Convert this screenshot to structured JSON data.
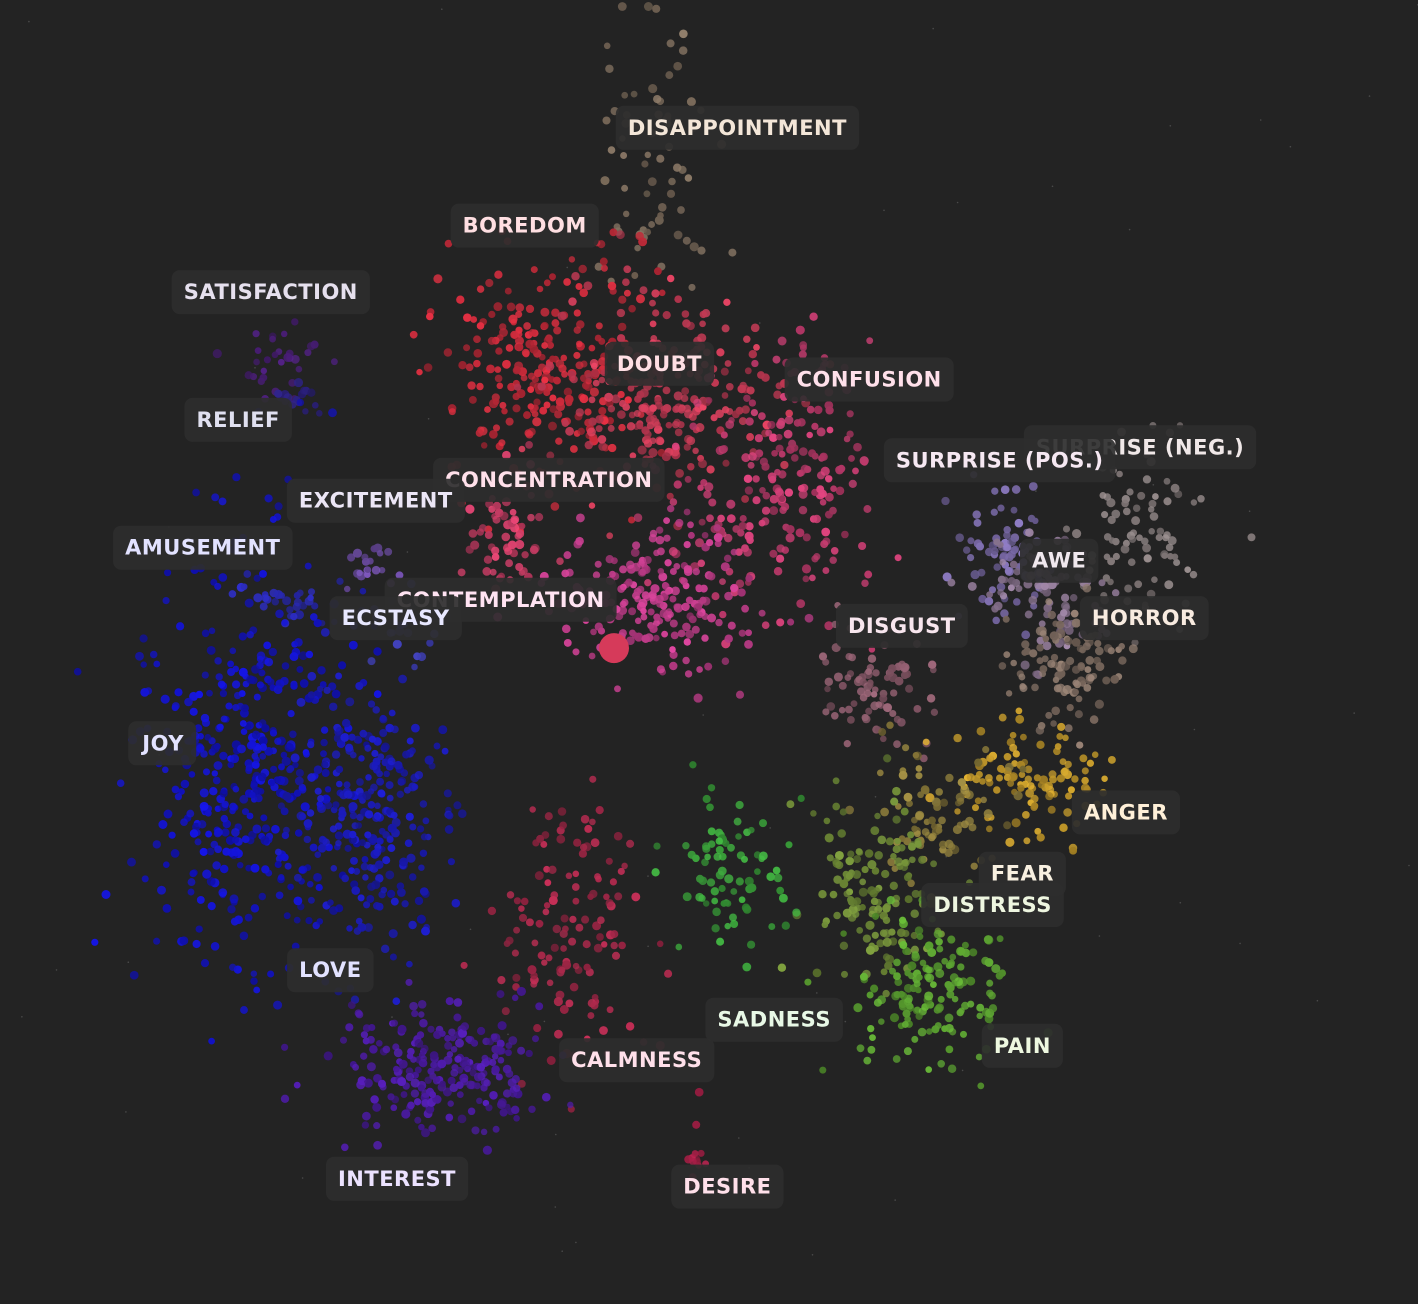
{
  "chart_data": {
    "type": "scatter",
    "title": "",
    "xlabel": "",
    "ylabel": "",
    "grid": false,
    "legend": "none",
    "xlim": [
      0,
      100
    ],
    "ylim": [
      0,
      100
    ],
    "clusters": [
      {
        "name": "DISAPPOINTMENT",
        "color": "#7a6a5a",
        "label_color": "#f3e6d8",
        "center": [
          46.5,
          13.0
        ],
        "spread": [
          2.2,
          6.0
        ],
        "count": 70
      },
      {
        "name": "BOREDOM",
        "color": "#c72a3a",
        "label_color": "#ffdfe2",
        "center": [
          39.0,
          28.0
        ],
        "spread": [
          3.5,
          4.5
        ],
        "count": 260
      },
      {
        "name": "SATISFACTION",
        "color": "#4b1e7a",
        "label_color": "#e6e0ee",
        "center": [
          19.5,
          28.0
        ],
        "spread": [
          1.4,
          1.4
        ],
        "count": 30
      },
      {
        "name": "DOUBT",
        "color": "#c63a55",
        "label_color": "#ffdfe4",
        "center": [
          47.0,
          30.5
        ],
        "spread": [
          4.0,
          4.0
        ],
        "count": 230
      },
      {
        "name": "CONFUSION",
        "color": "#c23b6e",
        "label_color": "#ffe0ea",
        "center": [
          55.0,
          37.0
        ],
        "spread": [
          3.6,
          5.5
        ],
        "count": 220
      },
      {
        "name": "RELIEF",
        "color": "#2a1f7a",
        "label_color": "#e0e0f0",
        "center": [
          21.0,
          30.5
        ],
        "spread": [
          0.9,
          0.5
        ],
        "count": 16
      },
      {
        "name": "SURPRISE (POS.)",
        "color": "#7a6aa8",
        "label_color": "#f6e8f2",
        "center": [
          71.0,
          42.5
        ],
        "spread": [
          2.0,
          2.3
        ],
        "count": 80
      },
      {
        "name": "SURPRISE (NEG.)",
        "color": "#8a8080",
        "label_color": "#f0e8e8",
        "center": [
          80.0,
          40.5
        ],
        "spread": [
          2.2,
          3.2
        ],
        "count": 90
      },
      {
        "name": "CONCENTRATION",
        "color": "#cc3d66",
        "label_color": "#ffe0ea",
        "center": [
          35.5,
          41.0
        ],
        "spread": [
          1.4,
          2.6
        ],
        "count": 60
      },
      {
        "name": "EXCITEMENT",
        "color": "#6a4aa0",
        "label_color": "#ece6f6",
        "center": [
          26.5,
          43.5
        ],
        "spread": [
          1.0,
          0.9
        ],
        "count": 20
      },
      {
        "name": "AMUSEMENT",
        "color": "#2828b0",
        "label_color": "#e2e2ff",
        "center": [
          20.0,
          46.0
        ],
        "spread": [
          1.8,
          1.0
        ],
        "count": 30
      },
      {
        "name": "AWE",
        "color": "#8a7490",
        "label_color": "#f0e8ee",
        "center": [
          74.0,
          45.5
        ],
        "spread": [
          2.2,
          2.6
        ],
        "count": 90
      },
      {
        "name": "CONTEMPLATION",
        "color": "#c13c8a",
        "label_color": "#ffe3f2",
        "center": [
          46.0,
          46.0
        ],
        "spread": [
          3.4,
          2.8
        ],
        "count": 210
      },
      {
        "name": "ECSTASY",
        "color": "#4040b8",
        "label_color": "#e8e8ff",
        "center": [
          28.5,
          48.0
        ],
        "spread": [
          1.4,
          1.6
        ],
        "count": 30
      },
      {
        "name": "HORROR",
        "color": "#857266",
        "label_color": "#f8ebe0",
        "center": [
          75.5,
          51.0
        ],
        "spread": [
          2.2,
          2.4
        ],
        "count": 100
      },
      {
        "name": "DISGUST",
        "color": "#8a5a6a",
        "label_color": "#f8e6ee",
        "center": [
          61.5,
          52.5
        ],
        "spread": [
          2.0,
          2.0
        ],
        "count": 80
      },
      {
        "name": "JOY",
        "color": "#1212c8",
        "label_color": "#e2e2ff",
        "center": [
          17.5,
          59.0
        ],
        "spread": [
          3.6,
          8.0
        ],
        "count": 420
      },
      {
        "name": "ANGER",
        "color": "#c49a2a",
        "label_color": "#fff0d8",
        "center": [
          72.5,
          60.0
        ],
        "spread": [
          2.6,
          2.4
        ],
        "count": 110
      },
      {
        "name": "FEAR",
        "color": "#8a7a3a",
        "label_color": "#f8f0e0",
        "center": [
          66.0,
          62.5
        ],
        "spread": [
          2.4,
          2.6
        ],
        "count": 80
      },
      {
        "name": "DISTRESS",
        "color": "#6e8a36",
        "label_color": "#eef6e0",
        "center": [
          62.0,
          68.0
        ],
        "spread": [
          2.4,
          3.2
        ],
        "count": 140
      },
      {
        "name": "LOVE",
        "color": "#1a1ab6",
        "label_color": "#e2e2ff",
        "center": [
          26.0,
          63.0
        ],
        "spread": [
          2.8,
          5.5
        ],
        "count": 260
      },
      {
        "name": "SADNESS",
        "color": "#3aa03a",
        "label_color": "#e8f8e6",
        "center": [
          51.0,
          67.0
        ],
        "spread": [
          2.0,
          3.0
        ],
        "count": 80
      },
      {
        "name": "PAIN",
        "color": "#5aa030",
        "label_color": "#eef8e0",
        "center": [
          65.5,
          76.0
        ],
        "spread": [
          3.0,
          3.0
        ],
        "count": 150
      },
      {
        "name": "CALMNESS",
        "color": "#a8284a",
        "label_color": "#ffe0ea",
        "center": [
          40.0,
          71.0
        ],
        "spread": [
          2.4,
          5.0
        ],
        "count": 130
      },
      {
        "name": "INTEREST",
        "color": "#4a1aa0",
        "label_color": "#ece2ff",
        "center": [
          31.0,
          82.0
        ],
        "spread": [
          3.6,
          2.6
        ],
        "count": 230
      },
      {
        "name": "DESIRE",
        "color": "#b0204a",
        "label_color": "#ffe0ea",
        "center": [
          49.0,
          89.5
        ],
        "spread": [
          0.3,
          2.5
        ],
        "count": 14
      }
    ],
    "labels": [
      {
        "text": "DISAPPOINTMENT",
        "pos": [
          52.0,
          9.8
        ]
      },
      {
        "text": "BOREDOM",
        "pos": [
          37.0,
          17.3
        ]
      },
      {
        "text": "SATISFACTION",
        "pos": [
          19.1,
          22.4
        ]
      },
      {
        "text": "DOUBT",
        "pos": [
          46.5,
          27.9
        ]
      },
      {
        "text": "CONFUSION",
        "pos": [
          61.3,
          29.1
        ]
      },
      {
        "text": "RELIEF",
        "pos": [
          16.8,
          32.2
        ]
      },
      {
        "text": "SURPRISE (NEG.)",
        "pos": [
          80.4,
          34.3
        ]
      },
      {
        "text": "SURPRISE (POS.)",
        "pos": [
          70.5,
          35.3
        ]
      },
      {
        "text": "CONCENTRATION",
        "pos": [
          38.7,
          36.8
        ]
      },
      {
        "text": "EXCITEMENT",
        "pos": [
          26.5,
          38.4
        ]
      },
      {
        "text": "AMUSEMENT",
        "pos": [
          14.3,
          42.0
        ]
      },
      {
        "text": "AWE",
        "pos": [
          74.7,
          43.0
        ]
      },
      {
        "text": "CONTEMPLATION",
        "pos": [
          35.3,
          46.0
        ]
      },
      {
        "text": "ECSTASY",
        "pos": [
          27.9,
          47.4
        ]
      },
      {
        "text": "HORROR",
        "pos": [
          80.7,
          47.4
        ]
      },
      {
        "text": "DISGUST",
        "pos": [
          63.6,
          48.0
        ]
      },
      {
        "text": "JOY",
        "pos": [
          11.5,
          57.0
        ]
      },
      {
        "text": "ANGER",
        "pos": [
          79.4,
          62.3
        ]
      },
      {
        "text": "FEAR",
        "pos": [
          72.1,
          67.0
        ]
      },
      {
        "text": "DISTRESS",
        "pos": [
          70.0,
          69.4
        ]
      },
      {
        "text": "LOVE",
        "pos": [
          23.3,
          74.4
        ]
      },
      {
        "text": "SADNESS",
        "pos": [
          54.6,
          78.2
        ]
      },
      {
        "text": "PAIN",
        "pos": [
          72.1,
          80.2
        ]
      },
      {
        "text": "CALMNESS",
        "pos": [
          44.9,
          81.3
        ]
      },
      {
        "text": "INTEREST",
        "pos": [
          28.0,
          90.4
        ]
      },
      {
        "text": "DESIRE",
        "pos": [
          51.3,
          91.0
        ]
      }
    ],
    "highlight_point": {
      "pos": [
        43.3,
        49.7
      ],
      "color": "#d63a5a"
    }
  }
}
